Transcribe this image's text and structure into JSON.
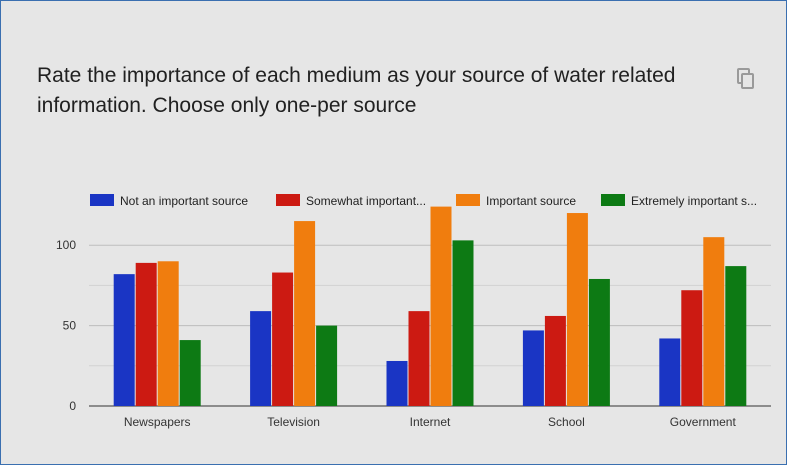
{
  "question": {
    "title": "Rate the importance of each medium as your source of water related\ninformation. Choose only one-per source"
  },
  "icons": {
    "copy": "copy-icon"
  },
  "chart_data": {
    "type": "bar",
    "categories": [
      "Newspapers",
      "Television",
      "Internet",
      "School",
      "Government"
    ],
    "series": [
      {
        "name": "Not an important source",
        "color": "#1a35c4",
        "values": [
          82,
          59,
          28,
          47,
          42
        ]
      },
      {
        "name": "Somewhat important...",
        "color": "#cc1a12",
        "values": [
          89,
          83,
          59,
          56,
          72
        ]
      },
      {
        "name": "Important source",
        "color": "#f07d0e",
        "values": [
          90,
          115,
          124,
          120,
          105
        ]
      },
      {
        "name": "Extremely important s...",
        "color": "#0d7a14",
        "values": [
          41,
          50,
          103,
          79,
          87
        ]
      }
    ],
    "ylim": [
      0,
      125
    ],
    "yticks": [
      0,
      50,
      100
    ],
    "legend_position": "top",
    "grid": true
  }
}
